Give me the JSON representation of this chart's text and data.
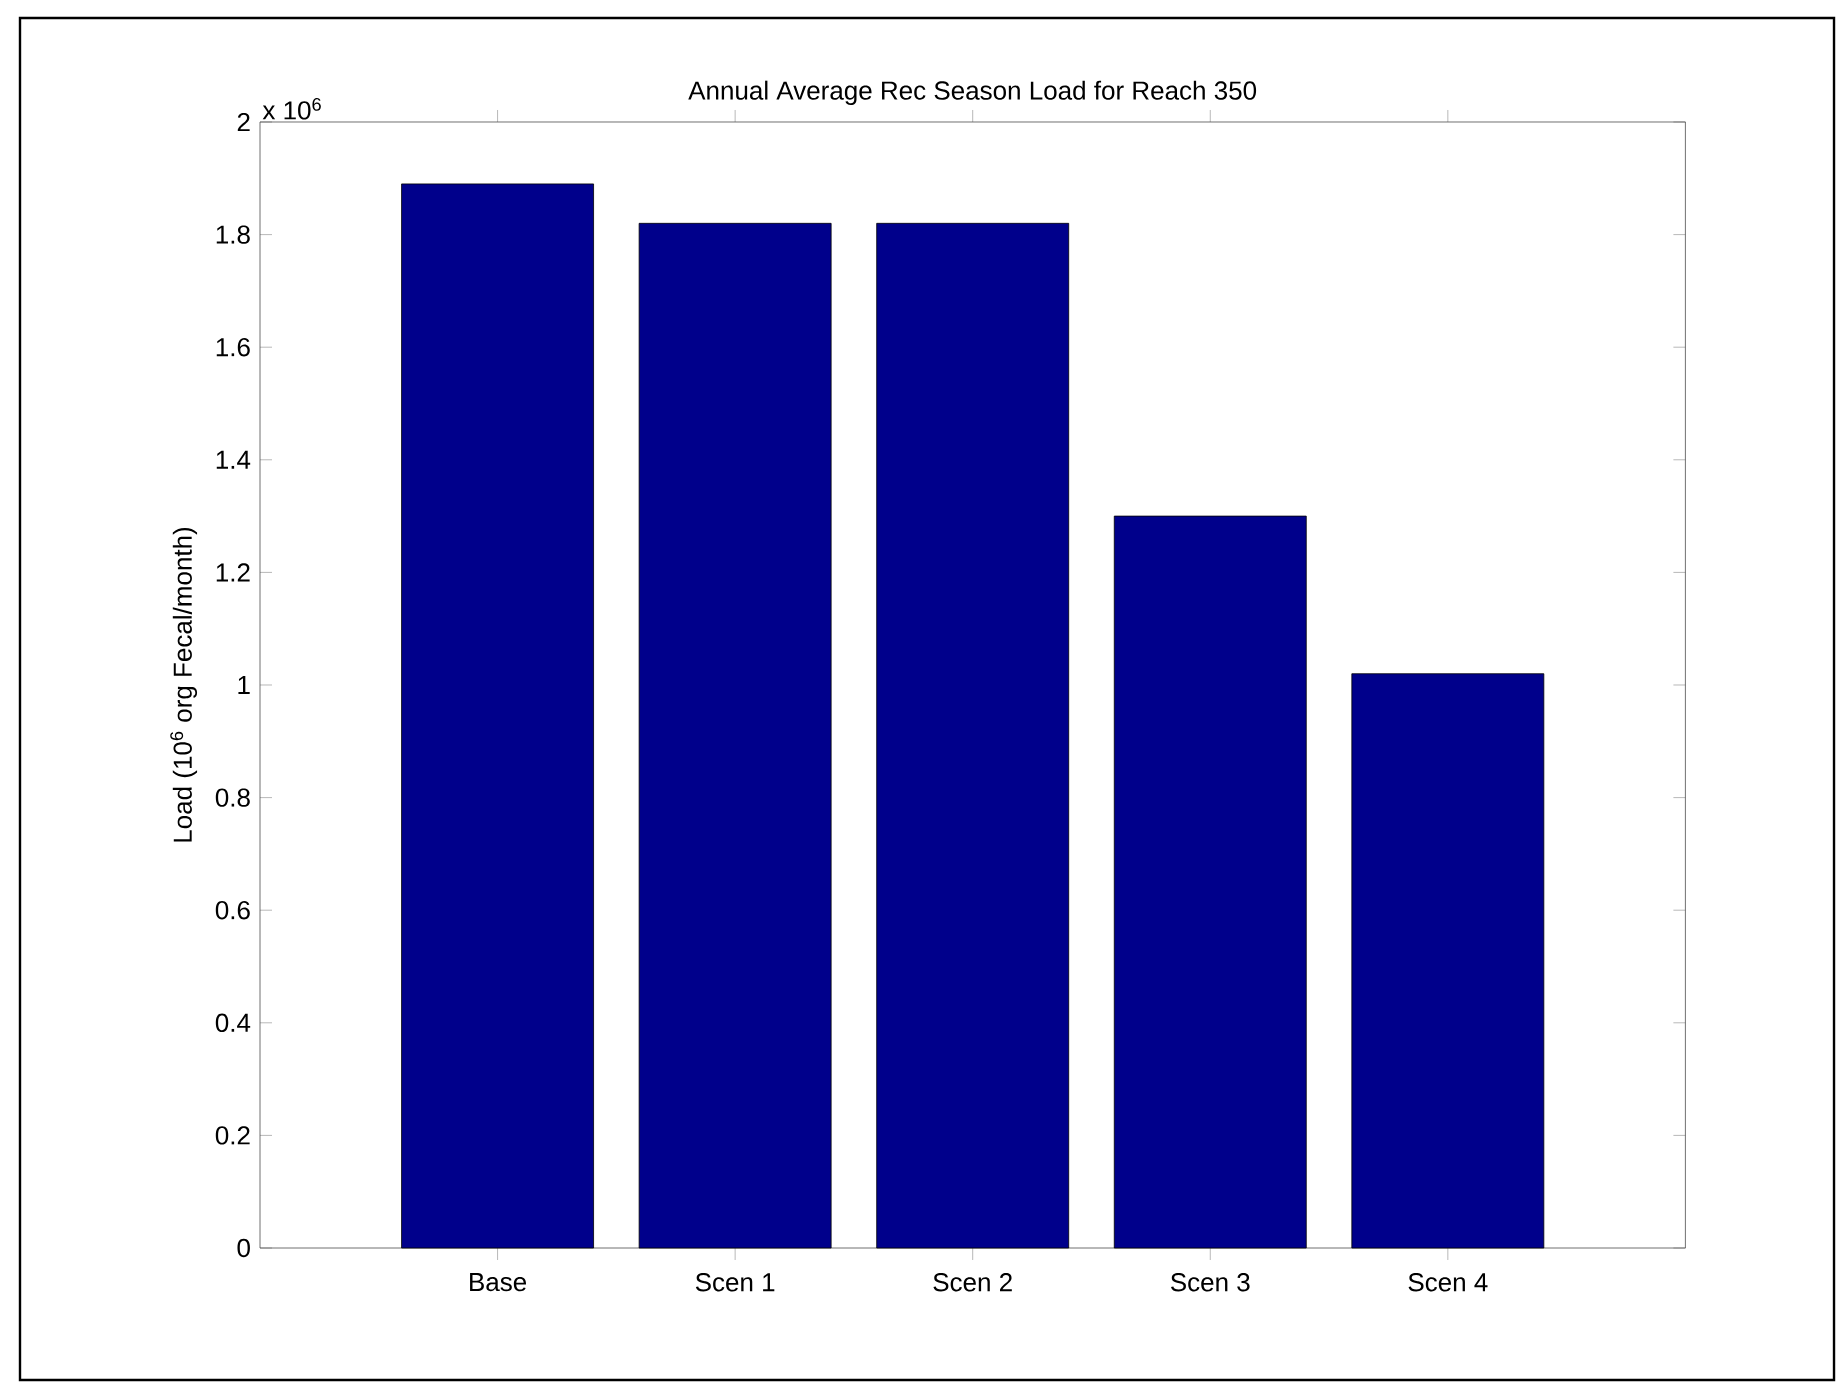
{
  "chart_data": {
    "type": "bar",
    "title": "Annual Average Rec Season Load for Reach 350",
    "ylabel": "Load (10$^{6}$ org Fecal/month)",
    "annotations": [
      "x 10$^{6}$"
    ],
    "categories": [
      "Base",
      "Scen 1",
      "Scen 2",
      "Scen 3",
      "Scen 4"
    ],
    "values": [
      1.89,
      1.82,
      1.82,
      1.3,
      1.02
    ],
    "color": "#00008b",
    "ylim": [
      0,
      2
    ],
    "yticks": [
      0,
      0.2,
      0.4,
      0.6,
      0.8,
      1,
      1.2,
      1.4,
      1.6,
      1.8,
      2
    ],
    "grid": false
  }
}
